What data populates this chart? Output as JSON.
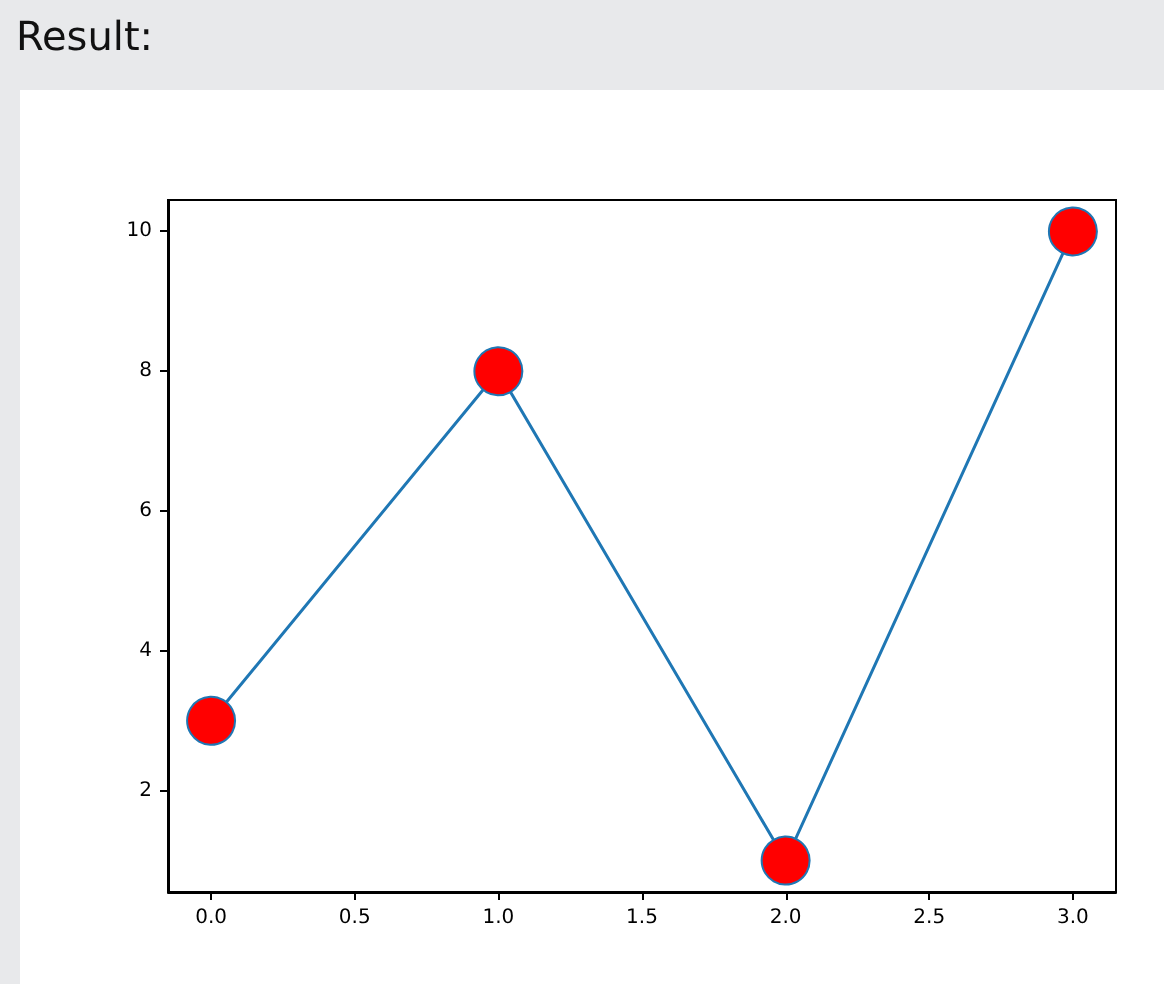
{
  "chart_data": {
    "type": "line",
    "title": "Result:",
    "x": [
      0,
      1,
      2,
      3
    ],
    "series": [
      {
        "color": "#1f77b4",
        "values": [
          3,
          8,
          1,
          10
        ],
        "colors": [
          "#ff0000",
          "#ff0000",
          "#ff0000",
          "#ff0000"
        ]
      }
    ],
    "xlim": [
      -0.15,
      3.15
    ],
    "xticks": [
      {
        "value": 0,
        "label": "0.0"
      },
      {
        "value": 0.5,
        "label": "0.5"
      },
      {
        "value": 1,
        "label": "1.0"
      },
      {
        "value": 1.5,
        "label": "1.5"
      },
      {
        "value": 2,
        "label": "2.0"
      },
      {
        "value": 2.5,
        "label": "2.5"
      },
      {
        "value": 3,
        "label": "3.0"
      }
    ],
    "ylim": [
      0.55,
      10.45
    ],
    "yticks": [
      2,
      4,
      6,
      8,
      10
    ],
    "marker": "circle",
    "line_style": "solid",
    "grid": false
  }
}
